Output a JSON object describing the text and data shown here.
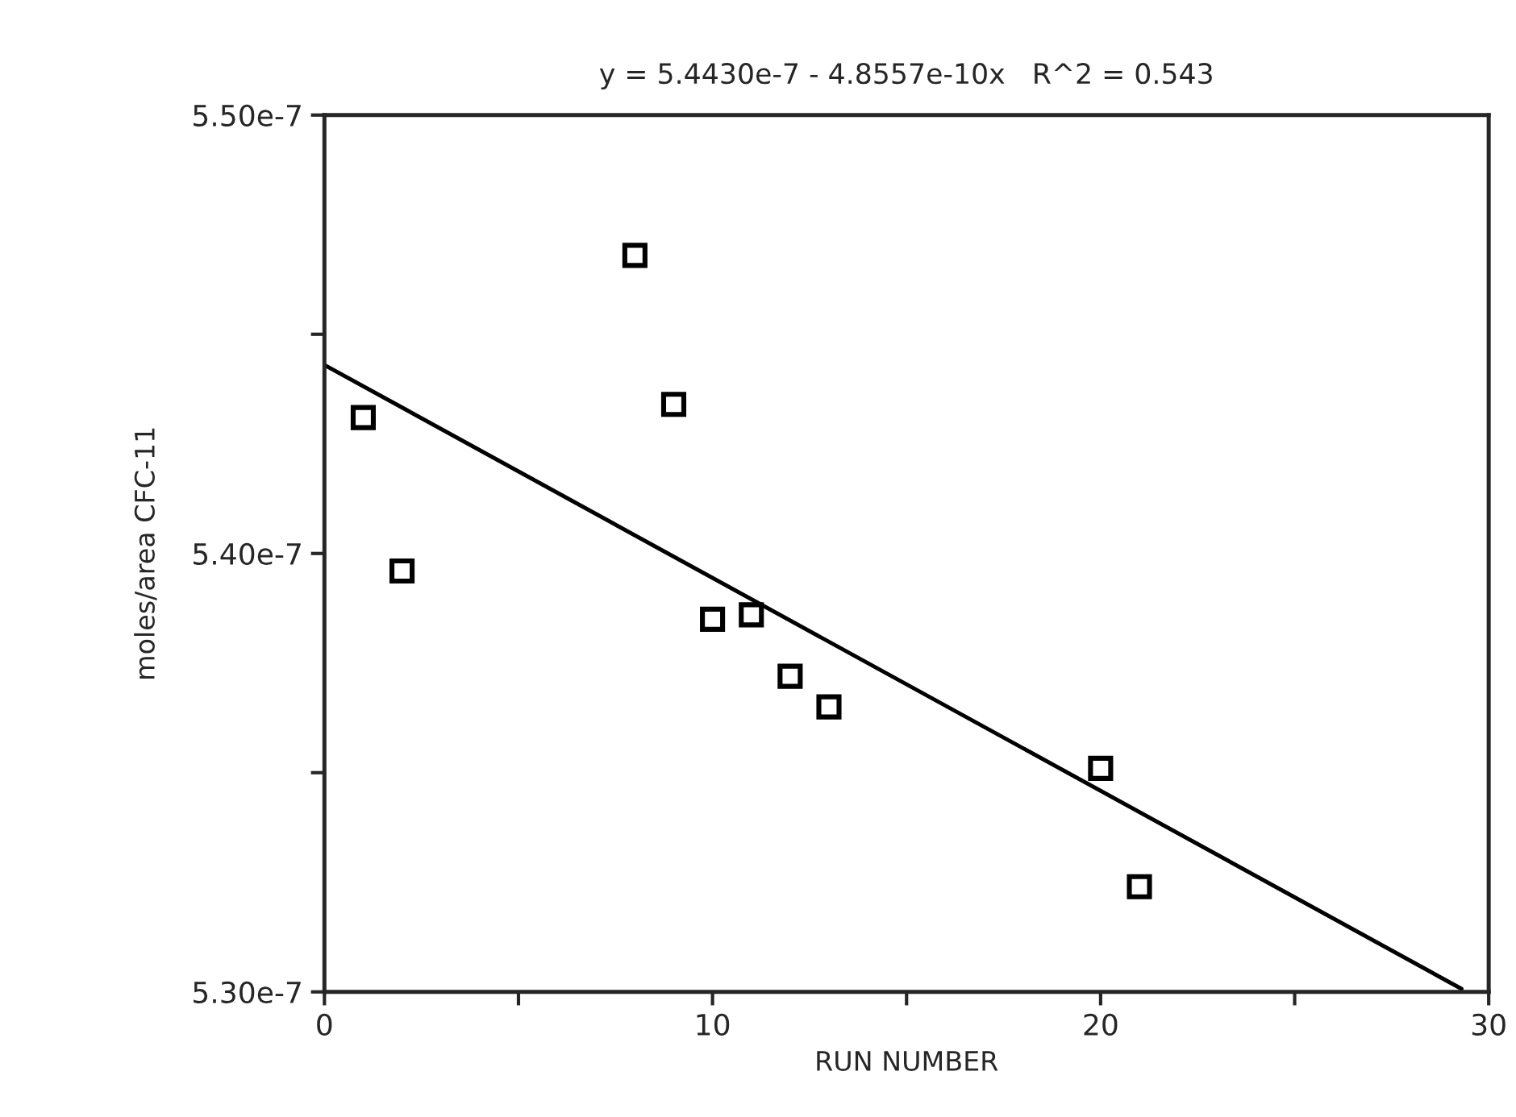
{
  "chart_data": {
    "type": "scatter",
    "title": "y = 5.4430e-7 - 4.8557e-10x   R^2 = 0.543",
    "xlabel": "RUN NUMBER",
    "ylabel": "moles/area CFC-11",
    "xlim": [
      0,
      30
    ],
    "xticks": [
      0,
      {
        "value": 5,
        "label": null
      },
      10,
      {
        "value": 15,
        "label": null
      },
      20,
      {
        "value": 25,
        "label": null
      },
      30
    ],
    "ylim": [
      5.3e-07,
      5.5e-07
    ],
    "yticks": [
      {
        "value": 5.3e-07,
        "label": "5.30e-7"
      },
      {
        "value": 5.35e-07,
        "label": null
      },
      {
        "value": 5.4e-07,
        "label": "5.40e-7"
      },
      {
        "value": 5.45e-07,
        "label": null
      },
      {
        "value": 5.5e-07,
        "label": "5.50e-7"
      }
    ],
    "grid": false,
    "legend": false,
    "marker": "square",
    "series": [
      {
        "color": "#000000",
        "x": [
          1,
          2,
          8,
          9,
          10,
          11,
          12,
          13,
          20,
          21
        ],
        "values": [
          5.431e-07,
          5.396e-07,
          5.468e-07,
          5.434e-07,
          5.385e-07,
          5.386e-07,
          5.372e-07,
          5.365e-07,
          5.351e-07,
          5.324e-07
        ]
      },
      {
        "type": "line",
        "color": "#000000",
        "marker": "none",
        "line_style": "solid",
        "x": [
          0,
          29.3
        ],
        "values": [
          5.443e-07,
          5.3007e-07
        ]
      }
    ]
  }
}
